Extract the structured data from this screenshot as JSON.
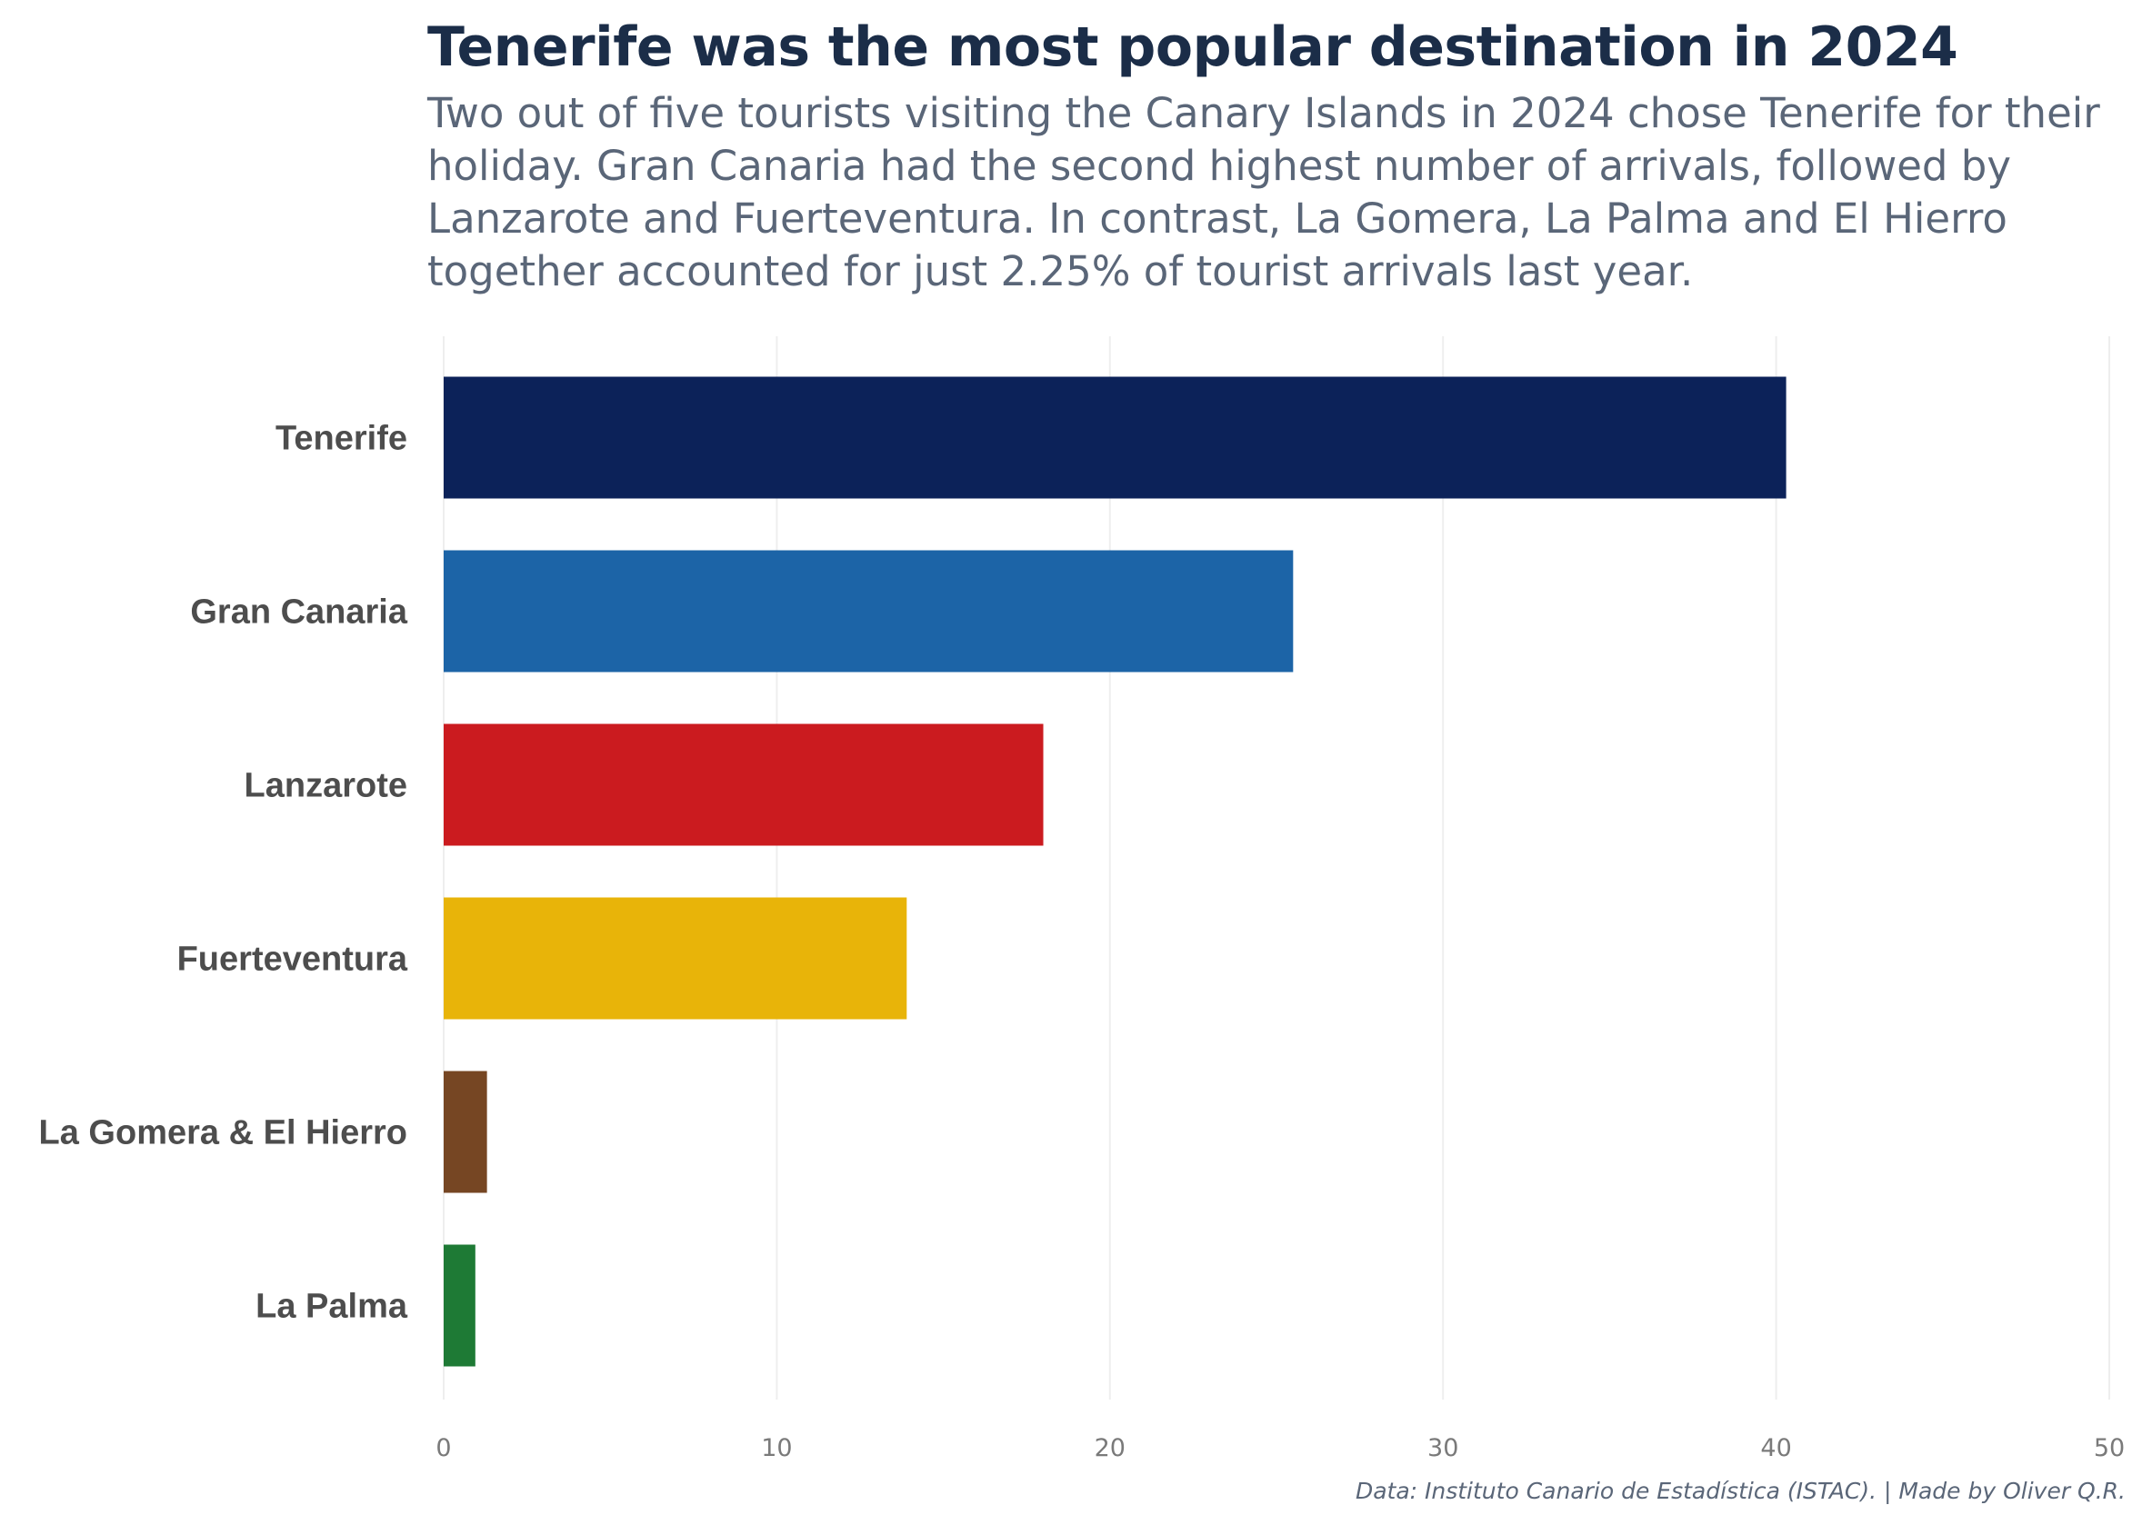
{
  "title": "Tenerife was the most popular destination in 2024",
  "subtitle": "Two out of five tourists visiting the Canary Islands in 2024 chose Tenerife for their holiday. Gran Canaria had the second highest number of arrivals, followed by Lanzarote and Fuerteventura. In contrast, La Gomera, La Palma and El Hierro together accounted for just 2.25% of tourist arrivals last year.",
  "caption": "Data: Instituto Canario de Estadística (ISTAC). | Made by Oliver Q.R.",
  "chart_data": {
    "type": "bar",
    "orientation": "horizontal",
    "title": "Tenerife was the most popular destination in 2024",
    "subtitle": "Two out of five tourists visiting the Canary Islands in 2024 chose Tenerife for their holiday. Gran Canaria had the second highest number of arrivals, followed by Lanzarote and Fuerteventura. In contrast, La Gomera, La Palma and El Hierro together accounted for just 2.25% of tourist arrivals last year.",
    "categories": [
      "Tenerife",
      "Gran Canaria",
      "Lanzarote",
      "Fuerteventura",
      "La Gomera & El Hierro",
      "La Palma"
    ],
    "values": [
      40.3,
      25.5,
      18.0,
      13.9,
      1.3,
      0.95
    ],
    "colors": [
      "#0c2259",
      "#1c64a7",
      "#cb1b1f",
      "#e8b409",
      "#764623",
      "#1e7a35"
    ],
    "xlabel": "",
    "ylabel": "",
    "xlim": [
      0,
      50
    ],
    "xticks": [
      0,
      10,
      20,
      30,
      40,
      50
    ],
    "grid": "vertical",
    "legend": "none"
  }
}
